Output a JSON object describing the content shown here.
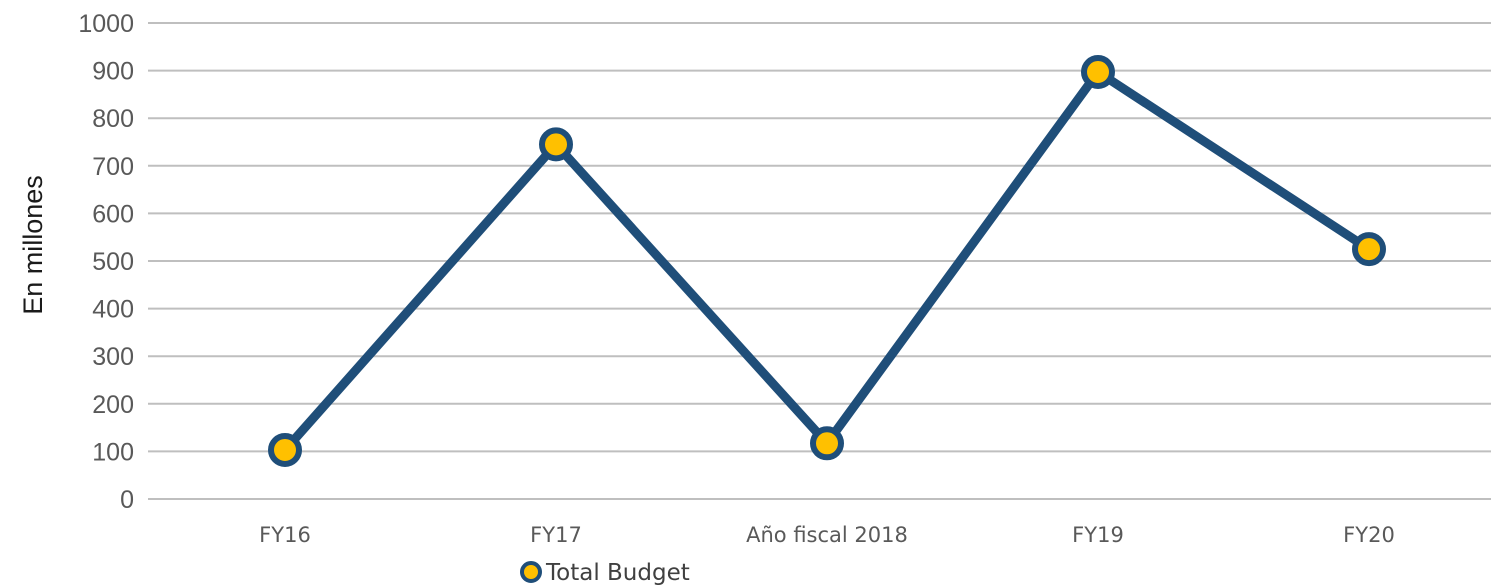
{
  "chart_data": {
    "type": "line",
    "categories": [
      "FY16",
      "FY17",
      "Año fiscal 2018",
      "FY19",
      "FY20"
    ],
    "series": [
      {
        "name": "Total Budget",
        "values": [
          103,
          745,
          117,
          897,
          525
        ]
      }
    ],
    "title": "",
    "xlabel": "",
    "ylabel": "En millones",
    "ylim": [
      0,
      1000
    ],
    "yticks": [
      0,
      100,
      200,
      300,
      400,
      500,
      600,
      700,
      800,
      900,
      1000
    ],
    "grid": true,
    "legend_position": "bottom",
    "colors": {
      "line": "#1f4e79",
      "marker_fill": "#ffc000",
      "grid": "#bfbfbf"
    }
  }
}
